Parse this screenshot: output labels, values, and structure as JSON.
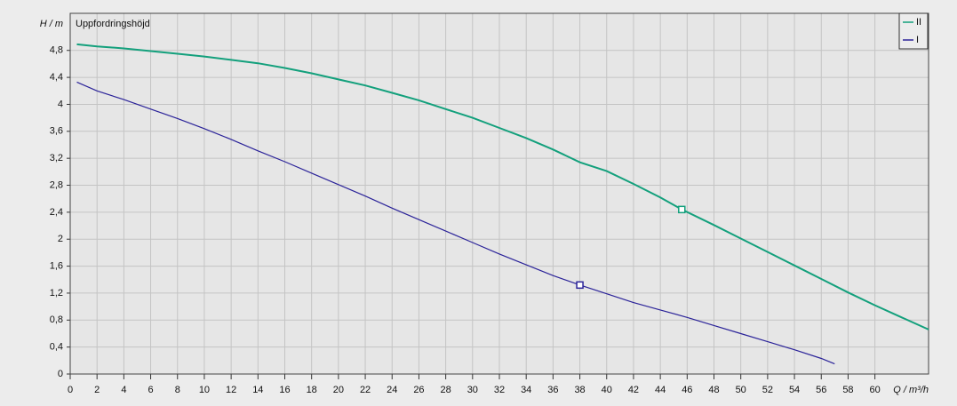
{
  "chart_data": {
    "type": "line",
    "title": "Uppfordringshöjd",
    "y_label": "H / m",
    "x_label": "Q / m³/h",
    "xlim": [
      0,
      64
    ],
    "ylim": [
      0,
      5.35
    ],
    "xticks": [
      0,
      2,
      4,
      6,
      8,
      10,
      12,
      14,
      16,
      18,
      20,
      22,
      24,
      26,
      28,
      30,
      32,
      34,
      36,
      38,
      40,
      42,
      44,
      46,
      48,
      50,
      52,
      54,
      56,
      58,
      60
    ],
    "yticks": [
      0,
      {
        "value": 0.4,
        "label": "0,4"
      },
      {
        "value": 0.8,
        "label": "0,8"
      },
      {
        "value": 1.2,
        "label": "1,2"
      },
      {
        "value": 1.6,
        "label": "1,6"
      },
      2,
      {
        "value": 2.4,
        "label": "2,4"
      },
      {
        "value": 2.8,
        "label": "2,8"
      },
      {
        "value": 3.2,
        "label": "3,2"
      },
      {
        "value": 3.6,
        "label": "3,6"
      },
      4,
      {
        "value": 4.4,
        "label": "4,4"
      },
      {
        "value": 4.8,
        "label": "4,8"
      }
    ],
    "grid": true,
    "legend": "top-right",
    "series": [
      {
        "name": "II",
        "color": "#13a07c",
        "x": [
          0.5,
          2,
          4,
          6,
          8,
          10,
          12,
          14,
          16,
          18,
          20,
          22,
          24,
          26,
          28,
          30,
          32,
          34,
          36,
          38,
          40,
          42,
          44,
          45.6,
          48,
          50,
          52,
          54,
          56,
          58,
          60,
          62,
          64
        ],
        "values": [
          4.89,
          4.86,
          4.83,
          4.79,
          4.75,
          4.71,
          4.66,
          4.61,
          4.54,
          4.46,
          4.37,
          4.28,
          4.17,
          4.06,
          3.93,
          3.8,
          3.65,
          3.5,
          3.33,
          3.14,
          3.01,
          2.82,
          2.62,
          2.44,
          2.21,
          2.01,
          1.81,
          1.61,
          1.41,
          1.21,
          1.02,
          0.84,
          0.66
        ],
        "marker": {
          "x": 45.6,
          "y": 2.44
        }
      },
      {
        "name": "I",
        "color": "#2b2399",
        "x": [
          0.5,
          2,
          4,
          6,
          8,
          10,
          12,
          14,
          16,
          18,
          20,
          22,
          24,
          26,
          28,
          30,
          32,
          34,
          36,
          38,
          40,
          42,
          44,
          46,
          48,
          50,
          52,
          54,
          56,
          57
        ],
        "values": [
          4.33,
          4.2,
          4.07,
          3.93,
          3.79,
          3.64,
          3.48,
          3.31,
          3.15,
          2.98,
          2.81,
          2.64,
          2.46,
          2.29,
          2.12,
          1.95,
          1.78,
          1.62,
          1.46,
          1.32,
          1.19,
          1.06,
          0.95,
          0.84,
          0.72,
          0.6,
          0.48,
          0.36,
          0.23,
          0.15
        ],
        "marker": {
          "x": 38,
          "y": 1.32
        }
      }
    ]
  }
}
